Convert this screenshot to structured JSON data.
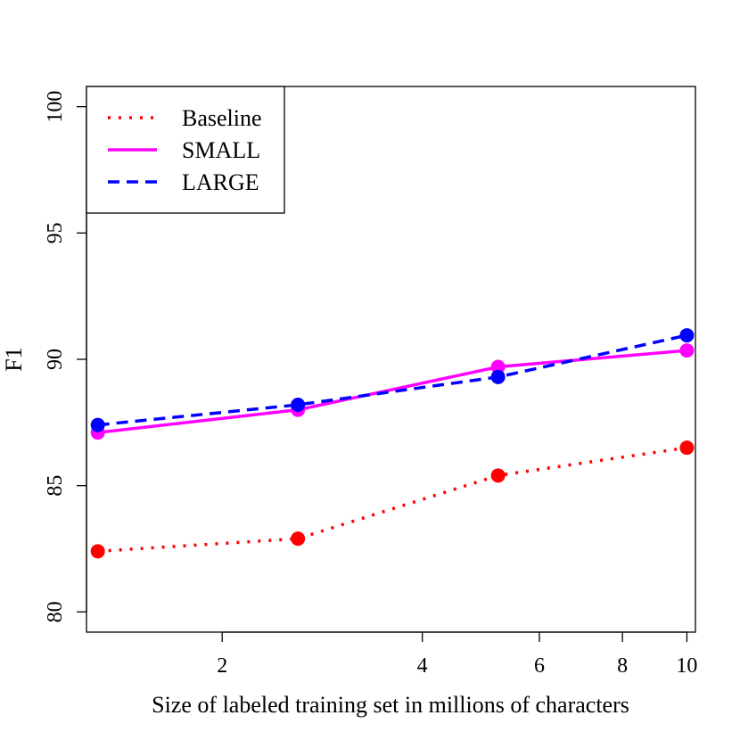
{
  "chart_data": {
    "type": "line",
    "title": "",
    "xlabel": "Size of labeled training set in millions of characters",
    "ylabel": "F1",
    "x_scale": "log",
    "xlim": [
      1.25,
      10.3
    ],
    "ylim": [
      79.2,
      100.8
    ],
    "x_ticks": [
      2,
      4,
      6,
      8,
      10
    ],
    "y_ticks": [
      80,
      85,
      90,
      95,
      100
    ],
    "legend_position": "top-left",
    "grid": false,
    "x": [
      1.3,
      2.6,
      5.2,
      10
    ],
    "series": [
      {
        "name": "Baseline",
        "color": "#ff0000",
        "line_style": "dotted",
        "values": [
          82.4,
          82.9,
          85.4,
          86.5
        ]
      },
      {
        "name": "SMALL",
        "color": "#ff00ff",
        "line_style": "solid",
        "values": [
          87.1,
          88.0,
          89.7,
          90.35
        ]
      },
      {
        "name": "LARGE",
        "color": "#0000ff",
        "line_style": "dashed",
        "values": [
          87.4,
          88.2,
          89.3,
          90.95
        ]
      }
    ]
  }
}
